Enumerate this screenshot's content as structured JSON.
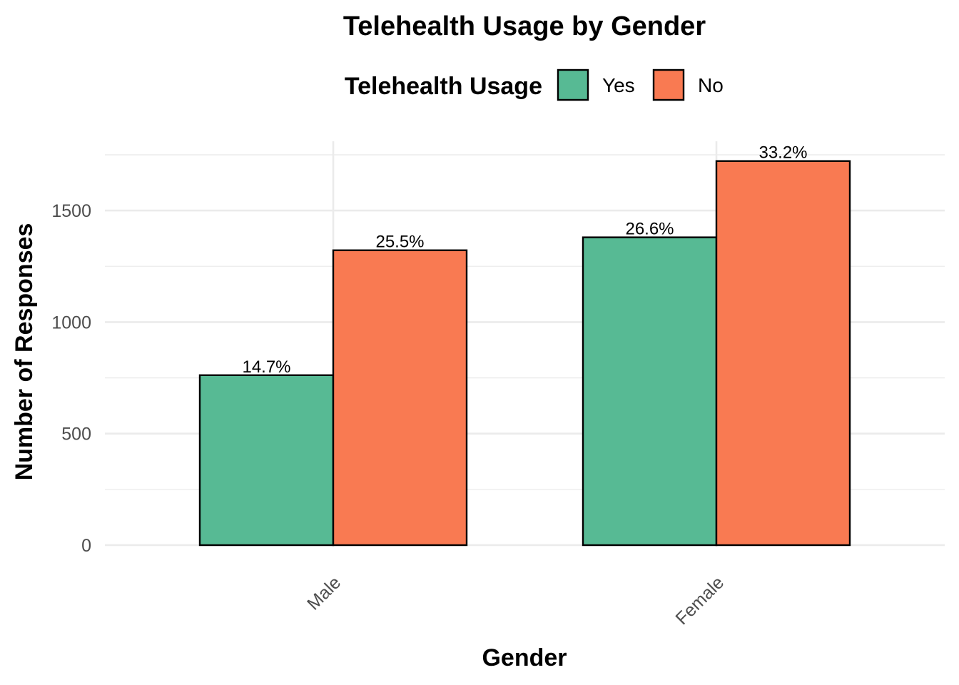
{
  "chart_data": {
    "type": "bar",
    "title": "Telehealth Usage by Gender",
    "xlabel": "Gender",
    "ylabel": "Number of Responses",
    "categories": [
      "Male",
      "Female"
    ],
    "legend": {
      "title": "Telehealth Usage",
      "position": "top"
    },
    "series": [
      {
        "name": "Yes",
        "color": "#57BA94",
        "values": [
          762,
          1380
        ],
        "labels": [
          "14.7%",
          "26.6%"
        ]
      },
      {
        "name": "No",
        "color": "#F97A52",
        "values": [
          1322,
          1722
        ],
        "labels": [
          "25.5%",
          "33.2%"
        ]
      }
    ],
    "yticks": [
      0,
      500,
      1000,
      1500
    ],
    "ylim": [
      0,
      1800
    ],
    "grid": true,
    "x_tick_rotation": -45
  }
}
